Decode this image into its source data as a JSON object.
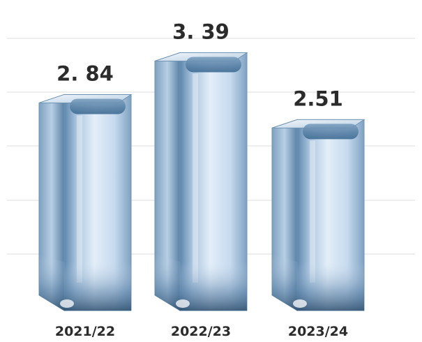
{
  "chart_data": {
    "type": "bar",
    "categories": [
      "2021/22",
      "2022/23",
      "2023/24"
    ],
    "values": [
      2.84,
      3.39,
      2.51
    ],
    "value_labels": [
      "2. 84",
      "3. 39",
      "2.51"
    ],
    "title": "",
    "xlabel": "",
    "ylabel": "",
    "ylim": [
      0,
      3.5
    ],
    "grid": true,
    "legend": "none",
    "colors": {
      "bar_light": "#dbe9f7",
      "bar_mid": "#a9c4de",
      "bar_dark": "#3f6f96",
      "bar_edge": "#6f93b3",
      "text": "#2b2b2b",
      "grid": "#e4e4e4"
    }
  }
}
